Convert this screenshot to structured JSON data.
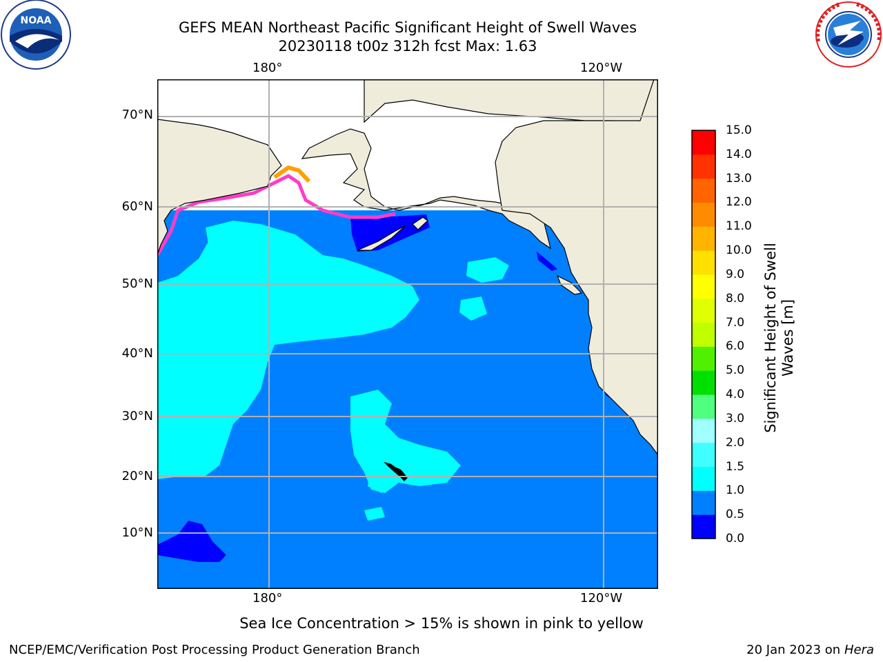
{
  "title": {
    "line1": "GEFS MEAN Northeast Pacific Significant Height of Swell Waves",
    "line2": "20230118 t00z 312h fcst   Max: 1.63"
  },
  "logos": {
    "left": {
      "name": "noaa-logo",
      "text": "NOAA",
      "ring_text": "NATIONAL OCEANIC AND ATMOSPHERIC ADMINISTRATION · U.S. DEPARTMENT OF COMMERCE"
    },
    "right": {
      "name": "nws-logo",
      "ring_text": "NATIONAL WEATHER SERVICE"
    }
  },
  "map": {
    "longitude_labels": [
      "180°",
      "120°W"
    ],
    "latitude_labels": [
      "70°N",
      "60°N",
      "50°N",
      "40°N",
      "30°N",
      "20°N",
      "10°N"
    ],
    "gridlines": true,
    "colors": {
      "land": "#efecdc",
      "no_data": "#ffffff",
      "coastline": "#000000",
      "grid": "#b0b0b0",
      "ice_edge_pink": "#ff3cc8",
      "ice_orange": "#ffa000"
    }
  },
  "colorbar": {
    "label": "Significant Height of Swell Waves [m]",
    "label_line1": "Significant Height of Swell",
    "label_line2": "Waves [m]",
    "ticks": [
      "0.0",
      "0.5",
      "1.0",
      "1.5",
      "2.0",
      "3.0",
      "4.0",
      "5.0",
      "6.0",
      "7.0",
      "8.0",
      "9.0",
      "10.0",
      "11.0",
      "12.0",
      "13.0",
      "14.0",
      "15.0"
    ],
    "colors": [
      "#0000ff",
      "#0080ff",
      "#00ffff",
      "#40ffff",
      "#a0ffff",
      "#50ff80",
      "#00e000",
      "#50f000",
      "#c0ff00",
      "#e0ff00",
      "#ffff00",
      "#ffe000",
      "#ffb400",
      "#ff8c00",
      "#ff6400",
      "#ff3200",
      "#ff0000"
    ]
  },
  "notes": {
    "ice": "Sea Ice Concentration > 15% is shown in pink to yellow"
  },
  "footer": {
    "left": "NCEP/EMC/Verification Post Processing Product Generation Branch",
    "right_prefix": "20 Jan 2023 on ",
    "right_machine": "Hera"
  }
}
